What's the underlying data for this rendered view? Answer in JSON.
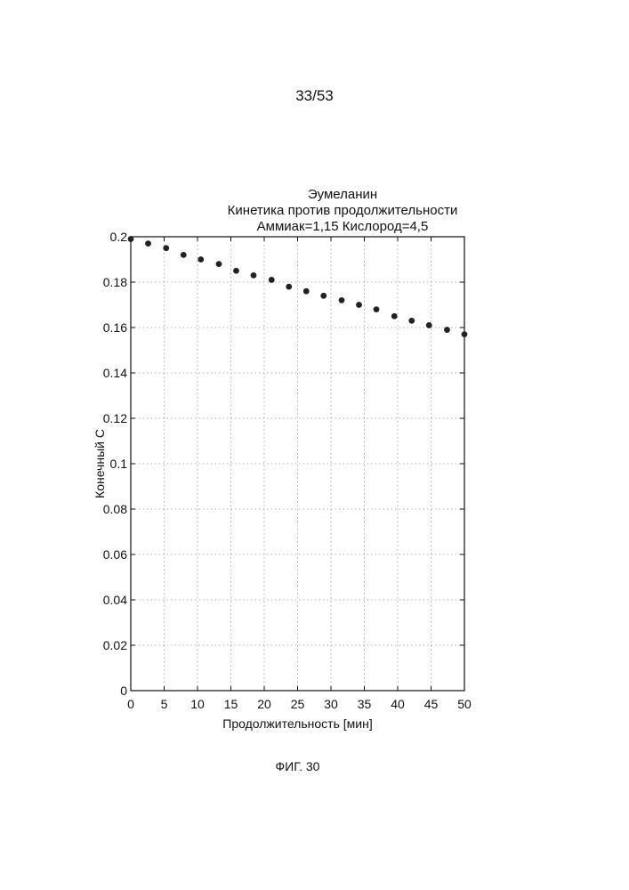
{
  "page": {
    "page_number": "33/53",
    "figure_caption": "ФИГ. 30"
  },
  "chart_data": {
    "type": "scatter",
    "title_lines": [
      "Эумеланин",
      "Кинетика против продолжительности",
      "Аммиак=1,15 Кислород=4,5"
    ],
    "xlabel": "Продолжительность [мин]",
    "ylabel": "Конечный С",
    "xlim": [
      0,
      50
    ],
    "ylim": [
      0,
      0.2
    ],
    "x_ticks": [
      0,
      5,
      10,
      15,
      20,
      25,
      30,
      35,
      40,
      45,
      50
    ],
    "x_tick_labels": [
      "0",
      "5",
      "10",
      "15",
      "20",
      "25",
      "30",
      "35",
      "40",
      "45",
      "50"
    ],
    "y_ticks": [
      0,
      0.02,
      0.04,
      0.06,
      0.08,
      0.1,
      0.12,
      0.14,
      0.16,
      0.18,
      0.2
    ],
    "y_tick_labels": [
      "0",
      "0.02",
      "0.04",
      "0.06",
      "0.08",
      "0.1",
      "0.12",
      "0.14",
      "0.16",
      "0.18",
      "0.2"
    ],
    "grid": true,
    "marker_color": "#222222",
    "series": [
      {
        "x": [
          0,
          2.6,
          5.3,
          7.9,
          10.5,
          13.2,
          15.8,
          18.4,
          21.1,
          23.7,
          26.3,
          28.9,
          31.6,
          34.2,
          36.8,
          39.5,
          42.1,
          44.7,
          47.4,
          50
        ],
        "y": [
          0.199,
          0.197,
          0.195,
          0.192,
          0.19,
          0.188,
          0.185,
          0.183,
          0.181,
          0.178,
          0.176,
          0.174,
          0.172,
          0.17,
          0.168,
          0.165,
          0.163,
          0.161,
          0.159,
          0.157
        ]
      }
    ]
  }
}
